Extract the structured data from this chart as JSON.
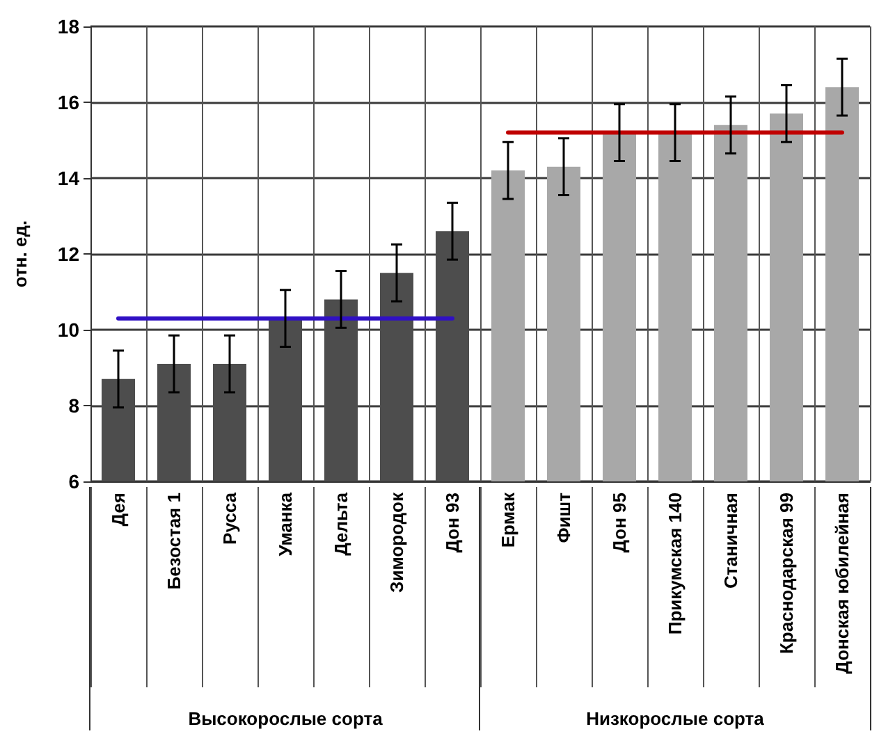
{
  "chart_data": {
    "type": "bar",
    "ylabel": "отн. ед.",
    "categories": [
      "Дея",
      "Безостая 1",
      "Русса",
      "Уманка",
      "Дельта",
      "Зимородок",
      "Дон 93",
      "Ермак",
      "Фишт",
      "Дон 95",
      "Прикумская 140",
      "Станичная",
      "Краснодарская 99",
      "Донская юбилейная"
    ],
    "series": [
      {
        "type": "bar",
        "values": [
          8.7,
          9.1,
          9.1,
          10.3,
          10.8,
          11.5,
          12.6,
          14.2,
          14.3,
          15.2,
          15.2,
          15.4,
          15.7,
          16.4
        ],
        "errors": [
          0.75,
          0.75,
          0.75,
          0.75,
          0.75,
          0.75,
          0.75,
          0.75,
          0.75,
          0.75,
          0.75,
          0.75,
          0.75,
          0.75
        ],
        "colors": [
          "#4d4d4d",
          "#4d4d4d",
          "#4d4d4d",
          "#4d4d4d",
          "#4d4d4d",
          "#4d4d4d",
          "#4d4d4d",
          "#a8a8a8",
          "#a8a8a8",
          "#a8a8a8",
          "#a8a8a8",
          "#a8a8a8",
          "#a8a8a8",
          "#a8a8a8"
        ]
      },
      {
        "type": "line",
        "color": "#3010c4",
        "values": [
          10.3,
          10.3,
          10.3,
          10.3,
          10.3,
          10.3,
          10.3,
          null,
          null,
          null,
          null,
          null,
          null,
          null
        ]
      },
      {
        "type": "line",
        "color": "#c00000",
        "values": [
          null,
          null,
          null,
          null,
          null,
          null,
          null,
          15.2,
          15.2,
          15.2,
          15.2,
          15.2,
          15.2,
          15.2
        ]
      }
    ],
    "ylim": [
      6,
      18
    ],
    "yticks": [
      6,
      8,
      10,
      12,
      14,
      16,
      18
    ],
    "grid": true,
    "marker": "none",
    "line_style": "solid",
    "annotations": [
      "Высокорослые сорта",
      "Низкорослые сорта"
    ]
  }
}
